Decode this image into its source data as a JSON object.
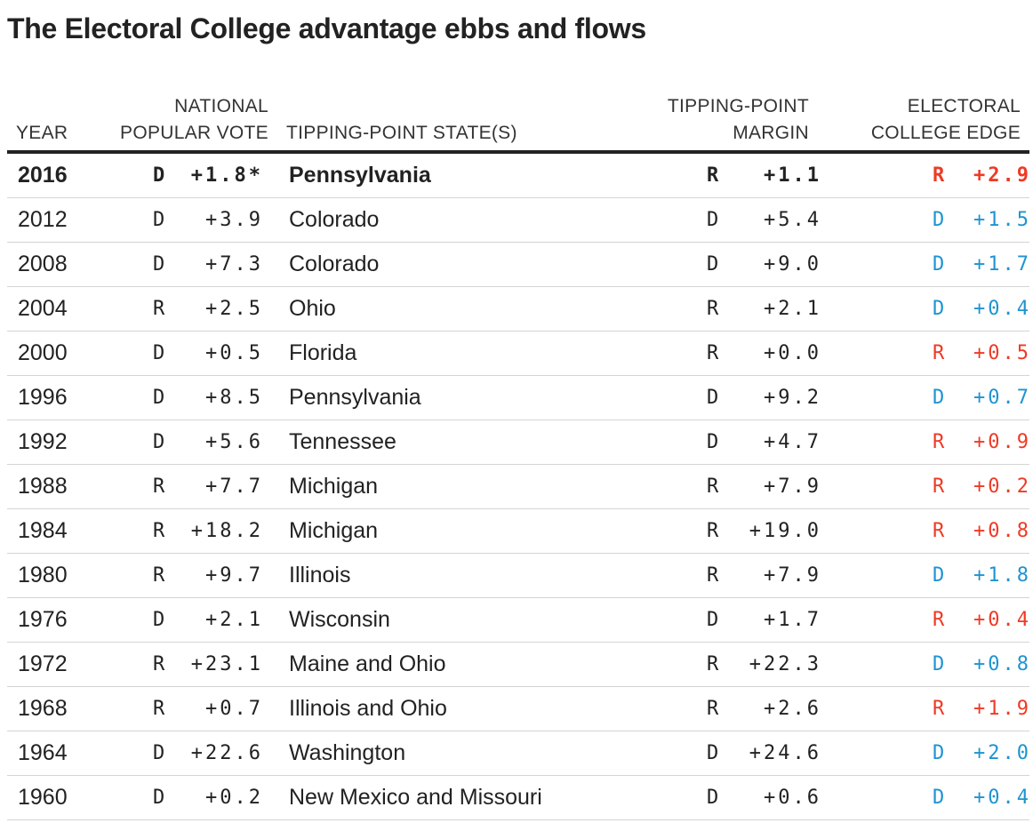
{
  "title": "The Electoral College advantage ebbs and flows",
  "colors": {
    "R": "#ee3a25",
    "D": "#1f93d1",
    "text": "#222222",
    "rule": "#d4d4d4"
  },
  "headers": {
    "year": "YEAR",
    "popular_vote_line1": "NATIONAL",
    "popular_vote_line2": "POPULAR VOTE",
    "state": "TIPPING-POINT STATE(S)",
    "tp_margin_line1": "TIPPING-POINT",
    "tp_margin_line2": "MARGIN",
    "ec_edge_line1": "ELECTORAL",
    "ec_edge_line2": "COLLEGE EDGE"
  },
  "chart_data": {
    "type": "table",
    "title": "The Electoral College advantage ebbs and flows",
    "columns": [
      "YEAR",
      "NATIONAL POPULAR VOTE",
      "TIPPING-POINT STATE(S)",
      "TIPPING-POINT MARGIN",
      "ELECTORAL COLLEGE EDGE"
    ],
    "rows": [
      {
        "year": "2016",
        "pv_party": "D",
        "pv_margin": "+1.8*",
        "state": "Pennsylvania",
        "tp_party": "R",
        "tp_margin": "+1.1",
        "ec_party": "R",
        "ec_edge": "+2.9",
        "bold": true
      },
      {
        "year": "2012",
        "pv_party": "D",
        "pv_margin": "+3.9",
        "state": "Colorado",
        "tp_party": "D",
        "tp_margin": "+5.4",
        "ec_party": "D",
        "ec_edge": "+1.5"
      },
      {
        "year": "2008",
        "pv_party": "D",
        "pv_margin": "+7.3",
        "state": "Colorado",
        "tp_party": "D",
        "tp_margin": "+9.0",
        "ec_party": "D",
        "ec_edge": "+1.7"
      },
      {
        "year": "2004",
        "pv_party": "R",
        "pv_margin": "+2.5",
        "state": "Ohio",
        "tp_party": "R",
        "tp_margin": "+2.1",
        "ec_party": "D",
        "ec_edge": "+0.4"
      },
      {
        "year": "2000",
        "pv_party": "D",
        "pv_margin": "+0.5",
        "state": "Florida",
        "tp_party": "R",
        "tp_margin": "+0.0",
        "ec_party": "R",
        "ec_edge": "+0.5"
      },
      {
        "year": "1996",
        "pv_party": "D",
        "pv_margin": "+8.5",
        "state": "Pennsylvania",
        "tp_party": "D",
        "tp_margin": "+9.2",
        "ec_party": "D",
        "ec_edge": "+0.7"
      },
      {
        "year": "1992",
        "pv_party": "D",
        "pv_margin": "+5.6",
        "state": "Tennessee",
        "tp_party": "D",
        "tp_margin": "+4.7",
        "ec_party": "R",
        "ec_edge": "+0.9"
      },
      {
        "year": "1988",
        "pv_party": "R",
        "pv_margin": "+7.7",
        "state": "Michigan",
        "tp_party": "R",
        "tp_margin": "+7.9",
        "ec_party": "R",
        "ec_edge": "+0.2"
      },
      {
        "year": "1984",
        "pv_party": "R",
        "pv_margin": "+18.2",
        "state": "Michigan",
        "tp_party": "R",
        "tp_margin": "+19.0",
        "ec_party": "R",
        "ec_edge": "+0.8"
      },
      {
        "year": "1980",
        "pv_party": "R",
        "pv_margin": "+9.7",
        "state": "Illinois",
        "tp_party": "R",
        "tp_margin": "+7.9",
        "ec_party": "D",
        "ec_edge": "+1.8"
      },
      {
        "year": "1976",
        "pv_party": "D",
        "pv_margin": "+2.1",
        "state": "Wisconsin",
        "tp_party": "D",
        "tp_margin": "+1.7",
        "ec_party": "R",
        "ec_edge": "+0.4"
      },
      {
        "year": "1972",
        "pv_party": "R",
        "pv_margin": "+23.1",
        "state": "Maine and Ohio",
        "tp_party": "R",
        "tp_margin": "+22.3",
        "ec_party": "D",
        "ec_edge": "+0.8"
      },
      {
        "year": "1968",
        "pv_party": "R",
        "pv_margin": "+0.7",
        "state": "Illinois and Ohio",
        "tp_party": "R",
        "tp_margin": "+2.6",
        "ec_party": "R",
        "ec_edge": "+1.9"
      },
      {
        "year": "1964",
        "pv_party": "D",
        "pv_margin": "+22.6",
        "state": "Washington",
        "tp_party": "D",
        "tp_margin": "+24.6",
        "ec_party": "D",
        "ec_edge": "+2.0"
      },
      {
        "year": "1960",
        "pv_party": "D",
        "pv_margin": "+0.2",
        "state": "New Mexico and Missouri",
        "tp_party": "D",
        "tp_margin": "+0.6",
        "ec_party": "D",
        "ec_edge": "+0.4"
      }
    ]
  }
}
